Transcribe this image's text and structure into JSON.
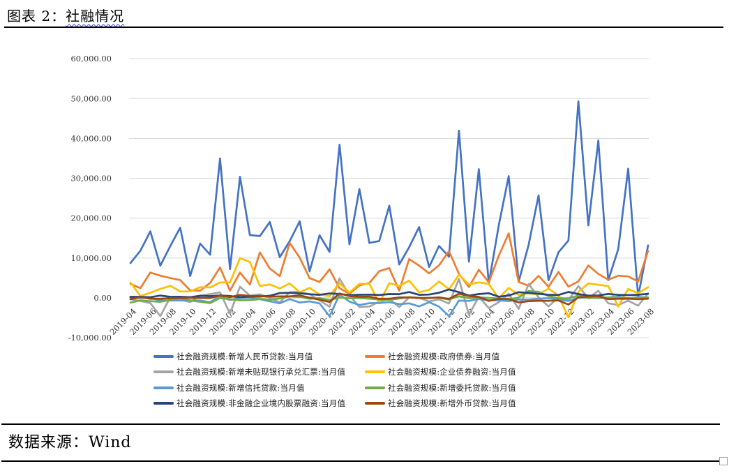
{
  "header": {
    "title_prefix": "图表 2：",
    "title_topic": "社融情况"
  },
  "footer": {
    "source": "数据来源：Wind"
  },
  "chart_data": {
    "type": "line",
    "title": "",
    "xlabel": "",
    "ylabel": "",
    "ylim": [
      -10000,
      60000
    ],
    "grid": true,
    "legend_position": "bottom",
    "x": [
      "2019-04",
      "2019-05",
      "2019-06",
      "2019-07",
      "2019-08",
      "2019-09",
      "2019-10",
      "2019-11",
      "2019-12",
      "2020-01",
      "2020-02",
      "2020-03",
      "2020-04",
      "2020-05",
      "2020-06",
      "2020-07",
      "2020-08",
      "2020-09",
      "2020-10",
      "2020-11",
      "2020-12",
      "2021-01",
      "2021-02",
      "2021-03",
      "2021-04",
      "2021-05",
      "2021-06",
      "2021-07",
      "2021-08",
      "2021-09",
      "2021-10",
      "2021-11",
      "2021-12",
      "2022-01",
      "2022-02",
      "2022-03",
      "2022-04",
      "2022-05",
      "2022-06",
      "2022-07",
      "2022-08",
      "2022-09",
      "2022-10",
      "2022-11",
      "2022-12",
      "2023-01",
      "2023-02",
      "2023-03",
      "2023-04",
      "2023-05",
      "2023-06",
      "2023-07",
      "2023-08"
    ],
    "x_axis": {
      "tick_indices": [
        0,
        2,
        4,
        6,
        8,
        10,
        12,
        14,
        16,
        18,
        20,
        22,
        24,
        26,
        28,
        30,
        32,
        34,
        36,
        38,
        40,
        42,
        44,
        46,
        48,
        50,
        52
      ],
      "tick_labels": [
        "2019-04",
        "2019-06",
        "2019-08",
        "2019-10",
        "2019-12",
        "2020-02",
        "2020-04",
        "2020-06",
        "2020-08",
        "2020-10",
        "2020-12",
        "2021-02",
        "2021-04",
        "2021-06",
        "2021-08",
        "2021-10",
        "2021-12",
        "2022-02",
        "2022-04",
        "2022-06",
        "2022-08",
        "2022-10",
        "2022-12",
        "2023-02",
        "2023-04",
        "2023-06",
        "2023-08"
      ]
    },
    "y_axis": {
      "ticks": [
        {
          "label": "60,000.00",
          "value": 60000
        },
        {
          "label": "50,000.00",
          "value": 50000
        },
        {
          "label": "40,000.00",
          "value": 40000
        },
        {
          "label": "30,000.00",
          "value": 30000
        },
        {
          "label": "20,000.00",
          "value": 20000
        },
        {
          "label": "10,000.00",
          "value": 10000
        },
        {
          "label": "0.00",
          "value": 0
        },
        {
          "label": "-10,000.00",
          "value": -10000
        }
      ]
    },
    "series": [
      {
        "name": "社会融资规模:新增人民币贷款:当月值",
        "color": "#4472C4",
        "values": [
          8733,
          11855,
          16698,
          8086,
          12993,
          17611,
          5470,
          13638,
          10832,
          34983,
          7202,
          30379,
          15776,
          15504,
          19045,
          10227,
          14250,
          19218,
          6648,
          15716,
          11554,
          38437,
          13429,
          27295,
          13790,
          14283,
          23127,
          8391,
          12713,
          17779,
          7752,
          13022,
          10364,
          41966,
          9084,
          32291,
          3616,
          18230,
          30540,
          4088,
          13323,
          25719,
          4431,
          11448,
          14401,
          49313,
          18184,
          39487,
          4431,
          12219,
          32413,
          364,
          13157
        ]
      },
      {
        "name": "社会融资规模:政府债券:当月值",
        "color": "#ED7D31",
        "values": [
          3479,
          2453,
          6364,
          5559,
          4976,
          4477,
          1882,
          1795,
          3738,
          7613,
          1824,
          6363,
          3357,
          11413,
          7376,
          5459,
          13788,
          10104,
          4931,
          4000,
          7156,
          2437,
          1017,
          3130,
          3739,
          6701,
          7475,
          1820,
          9738,
          8109,
          6167,
          8158,
          11718,
          6026,
          2722,
          7052,
          3912,
          10582,
          16184,
          3998,
          3045,
          5525,
          2791,
          6520,
          2810,
          4140,
          8138,
          6022,
          4548,
          5571,
          5388,
          4109,
          11800
        ]
      },
      {
        "name": "社会融资规模:新增未贴现银行承兑汇票:当月值",
        "color": "#A5A5A5",
        "values": [
          -357,
          -770,
          -1311,
          -4563,
          156,
          -431,
          -1053,
          571,
          951,
          1403,
          -3961,
          2818,
          577,
          884,
          -21,
          -1130,
          1441,
          1502,
          904,
          -626,
          -2216,
          4902,
          640,
          -2297,
          -2152,
          -926,
          -220,
          -2316,
          127,
          15,
          -886,
          -383,
          -1419,
          4731,
          -4228,
          286,
          -2557,
          -1068,
          1065,
          -2744,
          3485,
          134,
          -2157,
          190,
          -554,
          2963,
          -70,
          1790,
          -1347,
          -1797,
          -692,
          -1962,
          1129
        ]
      },
      {
        "name": "社会融资规模:企业债券融资:当月值",
        "color": "#FFC000",
        "values": [
          3874,
          476,
          1291,
          2240,
          3041,
          1610,
          1622,
          2696,
          2625,
          3865,
          3860,
          9953,
          9015,
          2971,
          3383,
          2383,
          3633,
          1422,
          2522,
          862,
          442,
          3751,
          1306,
          3535,
          3509,
          -1336,
          3702,
          2959,
          4341,
          1400,
          2030,
          4104,
          2167,
          5799,
          3377,
          3894,
          3479,
          -108,
          2495,
          734,
          1148,
          876,
          2325,
          596,
          -4887,
          1486,
          3644,
          3288,
          2981,
          -2175,
          2221,
          1179,
          2698
        ]
      },
      {
        "name": "社会融资规模:新增信托贷款:当月值",
        "color": "#5B9BD5",
        "values": [
          129,
          -52,
          15,
          -676,
          -658,
          -672,
          -624,
          -673,
          -1092,
          432,
          -540,
          -60,
          23,
          -337,
          -852,
          -1367,
          -316,
          -1159,
          -875,
          -1387,
          -4601,
          842,
          -936,
          -1791,
          -1328,
          -1295,
          -1047,
          -1571,
          -1358,
          -2129,
          -1061,
          -2190,
          -4580,
          -680,
          -751,
          -259,
          -615,
          -619,
          -828,
          -398,
          -472,
          -192,
          -61,
          -365,
          -764,
          62,
          66,
          -45,
          119,
          303,
          -153,
          230,
          97
        ]
      },
      {
        "name": "社会融资规模:新增委托贷款:当月值",
        "color": "#70AD47",
        "values": [
          -1197,
          -631,
          -827,
          -987,
          -513,
          -21,
          -667,
          -959,
          -1316,
          -26,
          -356,
          -588,
          -579,
          -273,
          -484,
          -152,
          415,
          247,
          -219,
          -31,
          -559,
          91,
          -100,
          -41,
          -213,
          -408,
          -473,
          -151,
          177,
          -22,
          14,
          35,
          -416,
          428,
          -74,
          106,
          -2,
          -132,
          -381,
          89,
          1755,
          1507,
          470,
          -88,
          -101,
          584,
          -77,
          174,
          83,
          35,
          -57,
          8,
          97
        ]
      },
      {
        "name": "社会融资规模:非金融企业境内股票融资:当月值",
        "color": "#264478",
        "values": [
          262,
          259,
          153,
          593,
          256,
          289,
          180,
          524,
          430,
          609,
          449,
          198,
          315,
          353,
          537,
          1215,
          1282,
          1140,
          927,
          771,
          1125,
          991,
          693,
          783,
          814,
          717,
          957,
          938,
          1478,
          772,
          846,
          1294,
          2118,
          1439,
          585,
          958,
          1166,
          292,
          589,
          1437,
          1251,
          1021,
          788,
          736,
          1485,
          964,
          571,
          614,
          993,
          753,
          700,
          786,
          1036
        ]
      },
      {
        "name": "社会融资规模:新增外币贷款:当月值",
        "color": "#9E480E",
        "values": [
          -330,
          191,
          -222,
          -221,
          -89,
          -21,
          25,
          -19,
          -51,
          609,
          205,
          754,
          465,
          456,
          325,
          379,
          374,
          627,
          52,
          -447,
          -1016,
          1098,
          463,
          258,
          318,
          -261,
          -203,
          129,
          128,
          -15,
          -34,
          134,
          -269,
          1031,
          480,
          239,
          -760,
          -240,
          -291,
          -1137,
          -826,
          -713,
          -724,
          -648,
          -1665,
          131,
          310,
          427,
          -319,
          -228,
          -191,
          -339,
          -201
        ]
      }
    ]
  }
}
